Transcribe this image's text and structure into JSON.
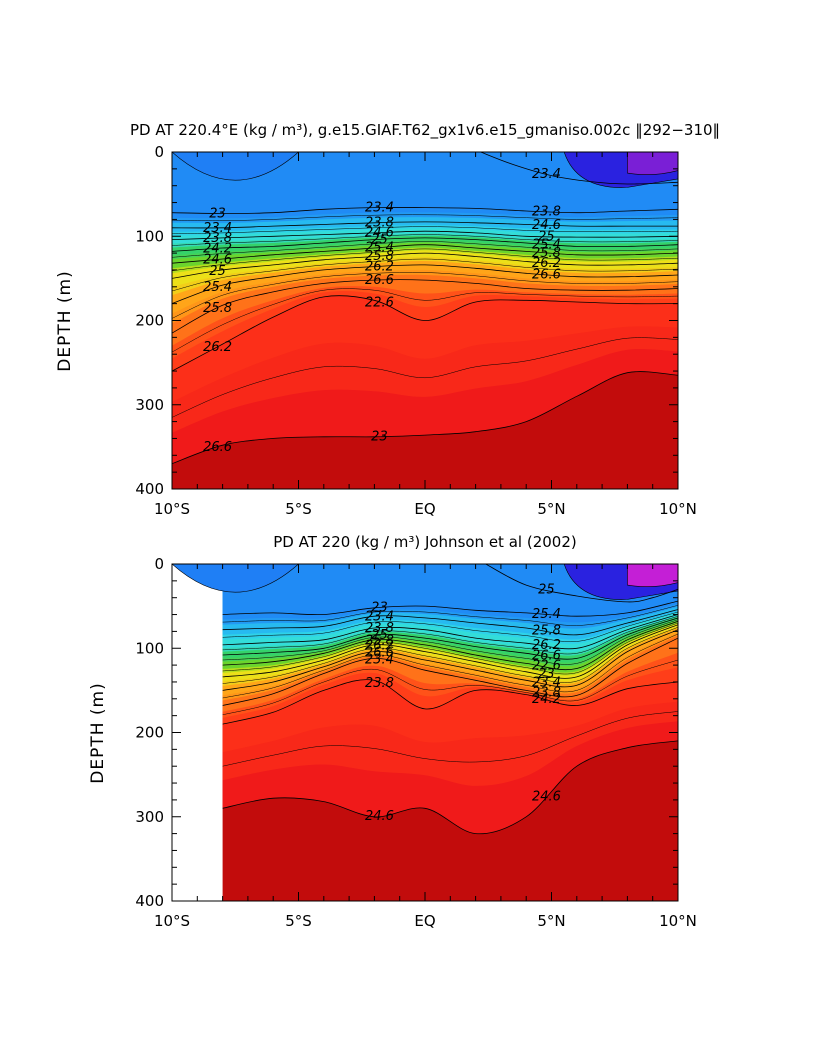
{
  "colors": {
    "density_scale": [
      "#7a1fd6",
      "#2a22e0",
      "#1f50f0",
      "#1f7ff5",
      "#23a6f5",
      "#2ac8f5",
      "#33e0f5",
      "#2ce8c0",
      "#28d27a",
      "#2ecc3a",
      "#8add20",
      "#e8ee1a",
      "#ffd21a",
      "#ffb21a",
      "#ff8c1a",
      "#ff621a",
      "#ff351a",
      "#f01a1a",
      "#d41212",
      "#c20c0c"
    ],
    "top_right_patch": "#c41fd6",
    "outline": "#000000"
  },
  "chart_data": [
    {
      "type": "heatmap",
      "title": "PD AT 220.4°E (kg / m³), g.e15.GIAF.T62_gx1v6.e15_gmaniso.002c ‖292−310‖",
      "ylabel": "DEPTH (m)",
      "xlabel": "",
      "x_ticks": [
        "10°S",
        "5°S",
        "EQ",
        "5°N",
        "10°N"
      ],
      "y_ticks": [
        "0",
        "100",
        "200",
        "300",
        "400"
      ],
      "xlim": [
        -10,
        10
      ],
      "ylim": [
        400,
        0
      ],
      "contour_labels": [
        "23",
        "23.4",
        "23.8",
        "24.2",
        "24.6",
        "25",
        "25.4",
        "25.8",
        "26.2",
        "26.6",
        "23.4",
        "23.8",
        "24.6",
        "25",
        "25.4",
        "25.8",
        "26.2",
        "26.6",
        "22.6",
        "23",
        "23.4",
        "23.8",
        "24.6",
        "25",
        "25.4",
        "25.8",
        "26.2",
        "26.6"
      ],
      "isopycnals": [
        {
          "level": 22.6,
          "x": [
            2.2,
            3.5,
            5,
            6.5,
            8,
            10
          ],
          "y": [
            0,
            15,
            28,
            35,
            38,
            36
          ]
        },
        {
          "level": 23.0,
          "x": [
            -10,
            -8,
            -6,
            -4,
            -2,
            0,
            2,
            4,
            6,
            8,
            10
          ],
          "y": [
            72,
            73,
            72,
            68,
            66,
            66,
            67,
            70,
            72,
            70,
            68
          ]
        },
        {
          "level": 23.4,
          "x": [
            -10,
            -8,
            -6,
            -4,
            -2,
            0,
            2,
            4,
            6,
            8,
            10
          ],
          "y": [
            90,
            90,
            88,
            86,
            84,
            83,
            84,
            86,
            88,
            88,
            88
          ]
        },
        {
          "level": 23.8,
          "x": [
            -10,
            -8,
            -6,
            -4,
            -2,
            0,
            2,
            4,
            6,
            8,
            10
          ],
          "y": [
            104,
            102,
            100,
            98,
            96,
            94,
            96,
            100,
            101,
            101,
            100
          ]
        },
        {
          "level": 24.2,
          "x": [
            -10,
            -8,
            -6,
            -4,
            -2,
            0,
            2,
            4,
            6,
            8,
            10
          ],
          "y": [
            118,
            114,
            112,
            108,
            104,
            102,
            104,
            108,
            112,
            112,
            110
          ]
        },
        {
          "level": 24.6,
          "x": [
            -10,
            -8,
            -6,
            -4,
            -2,
            0,
            2,
            4,
            6,
            8,
            10
          ],
          "y": [
            132,
            127,
            122,
            118,
            114,
            110,
            114,
            118,
            122,
            122,
            120
          ]
        },
        {
          "level": 25.0,
          "x": [
            -10,
            -8,
            -6,
            -4,
            -2,
            0,
            2,
            4,
            6,
            8,
            10
          ],
          "y": [
            150,
            140,
            134,
            128,
            124,
            120,
            124,
            130,
            134,
            134,
            132
          ]
        },
        {
          "level": 25.4,
          "x": [
            -10,
            -8,
            -6,
            -4,
            -2,
            0,
            2,
            4,
            6,
            8,
            10
          ],
          "y": [
            180,
            158,
            148,
            140,
            136,
            134,
            138,
            144,
            148,
            148,
            146
          ]
        },
        {
          "level": 25.8,
          "x": [
            -10,
            -8,
            -6,
            -4,
            -2,
            0,
            2,
            4,
            6,
            8,
            10
          ],
          "y": [
            215,
            182,
            166,
            156,
            152,
            152,
            156,
            162,
            164,
            164,
            162
          ]
        },
        {
          "level": 26.2,
          "x": [
            -10,
            -8,
            -6,
            -4,
            -2,
            0,
            2,
            4,
            6,
            8,
            10
          ],
          "y": [
            260,
            228,
            196,
            172,
            176,
            200,
            178,
            176,
            178,
            180,
            180
          ]
        },
        {
          "level": 26.6,
          "x": [
            -10,
            -8,
            -6,
            -4,
            -2,
            0,
            2,
            4,
            6,
            8,
            10
          ],
          "y": [
            370,
            348,
            340,
            338,
            338,
            336,
            332,
            320,
            290,
            262,
            265
          ]
        }
      ]
    },
    {
      "type": "heatmap",
      "title": "PD AT 220 (kg / m³) Johnson et al (2002)",
      "ylabel": "DEPTH (m)",
      "xlabel": "",
      "x_ticks": [
        "10°S",
        "5°S",
        "EQ",
        "5°N",
        "10°N"
      ],
      "y_ticks": [
        "0",
        "100",
        "200",
        "300",
        "400"
      ],
      "xlim": [
        -10,
        10
      ],
      "ylim": [
        400,
        0
      ],
      "data_x_start": -8,
      "contour_labels": [
        "23",
        "23.4",
        "23.8",
        "25",
        "25.8",
        "26.2",
        "26.6",
        "23.4",
        "23.8",
        "24.6",
        "25",
        "25.4",
        "25.8",
        "26.2",
        "26.6",
        "22.6",
        "23",
        "23.4",
        "23.8",
        "24.2",
        "24.6",
        "25",
        "25.4",
        "25.8",
        "26.2",
        "26.6"
      ],
      "isopycnals": [
        {
          "level": 22.6,
          "x": [
            2.4,
            4,
            6,
            8,
            9,
            10
          ],
          "y": [
            0,
            25,
            38,
            45,
            40,
            30
          ]
        },
        {
          "level": 23.0,
          "x": [
            -8,
            -6,
            -4,
            -2,
            0,
            2,
            4,
            6,
            8,
            10
          ],
          "y": [
            60,
            58,
            60,
            52,
            50,
            55,
            58,
            62,
            58,
            44
          ]
        },
        {
          "level": 23.4,
          "x": [
            -8,
            -6,
            -4,
            -2,
            0,
            2,
            4,
            6,
            8,
            10
          ],
          "y": [
            78,
            76,
            74,
            62,
            64,
            70,
            76,
            84,
            70,
            54
          ]
        },
        {
          "level": 23.8,
          "x": [
            -8,
            -6,
            -4,
            -2,
            0,
            2,
            4,
            6,
            8,
            10
          ],
          "y": [
            96,
            93,
            90,
            76,
            78,
            88,
            94,
            100,
            78,
            60
          ]
        },
        {
          "level": 24.2,
          "x": [
            -8,
            -6,
            -4,
            -2,
            0,
            2,
            4,
            6,
            8,
            10
          ],
          "y": [
            108,
            105,
            100,
            84,
            88,
            98,
            106,
            112,
            84,
            64
          ]
        },
        {
          "level": 24.6,
          "x": [
            -8,
            -6,
            -4,
            -2,
            0,
            2,
            4,
            6,
            8,
            10
          ],
          "y": [
            120,
            116,
            106,
            90,
            96,
            108,
            118,
            124,
            90,
            68
          ]
        },
        {
          "level": 25.0,
          "x": [
            -8,
            -6,
            -4,
            -2,
            0,
            2,
            4,
            6,
            8,
            10
          ],
          "y": [
            134,
            128,
            114,
            96,
            104,
            116,
            128,
            134,
            96,
            72
          ]
        },
        {
          "level": 25.4,
          "x": [
            -8,
            -6,
            -4,
            -2,
            0,
            2,
            4,
            6,
            8,
            10
          ],
          "y": [
            150,
            140,
            122,
            104,
            114,
            126,
            138,
            144,
            104,
            78
          ]
        },
        {
          "level": 25.8,
          "x": [
            -8,
            -6,
            -4,
            -2,
            0,
            2,
            4,
            6,
            8,
            10
          ],
          "y": [
            168,
            154,
            130,
            112,
            126,
            138,
            150,
            156,
            118,
            88
          ]
        },
        {
          "level": 26.2,
          "x": [
            -8,
            -6,
            -4,
            -2,
            0,
            2,
            4,
            6,
            8,
            10
          ],
          "y": [
            190,
            176,
            150,
            138,
            172,
            150,
            155,
            168,
            148,
            140
          ]
        },
        {
          "level": 26.6,
          "x": [
            -8,
            -6,
            -4,
            -2,
            0,
            2,
            4,
            6,
            8,
            10
          ],
          "y": [
            290,
            278,
            282,
            300,
            290,
            320,
            300,
            240,
            218,
            210
          ]
        }
      ]
    }
  ]
}
